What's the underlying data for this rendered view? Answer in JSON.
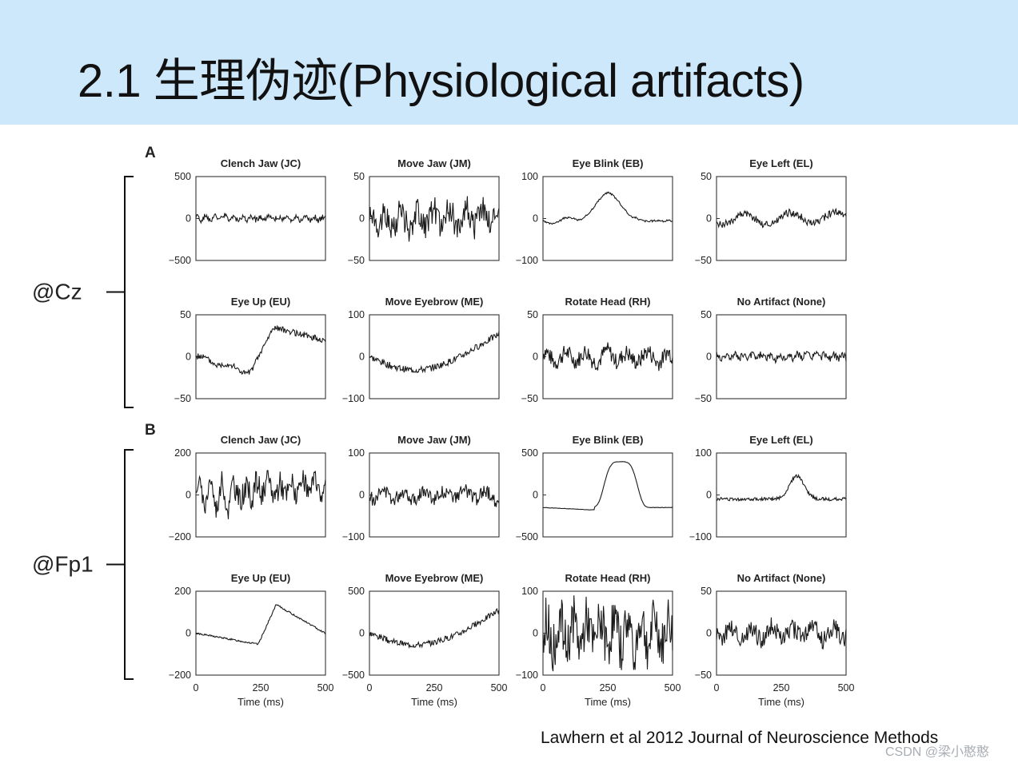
{
  "slide": {
    "title": "2.1 生理伪迹(Physiological artifacts)",
    "header_color": "#cde7fb",
    "citation": "Lawhern et al 2012 Journal of Neuroscience Methods",
    "watermark": "CSDN @梁小憨憨"
  },
  "sections": [
    {
      "label": "A",
      "channel": "@Cz"
    },
    {
      "label": "B",
      "channel": "@Fp1"
    }
  ],
  "chart_data": [
    {
      "type": "line",
      "section": "A",
      "title": "Clench Jaw (JC)",
      "ylim": [
        -500,
        500
      ],
      "yticks": [
        "500",
        "0",
        "−500"
      ],
      "x_range": [
        0,
        500
      ],
      "pattern": "hf",
      "amp": 0.1,
      "seed": 1
    },
    {
      "type": "line",
      "section": "A",
      "title": "Move Jaw (JM)",
      "ylim": [
        -50,
        50
      ],
      "yticks": [
        "50",
        "0",
        "−50"
      ],
      "x_range": [
        0,
        500
      ],
      "pattern": "noise",
      "amp": 0.42,
      "seed": 2
    },
    {
      "type": "line",
      "section": "A",
      "title": "Eye Blink (EB)",
      "ylim": [
        -100,
        100
      ],
      "yticks": [
        "100",
        "0",
        "−100"
      ],
      "x_range": [
        0,
        500
      ],
      "pattern": "blink",
      "amp": 0.65,
      "seed": 3
    },
    {
      "type": "line",
      "section": "A",
      "title": "Eye Left (EL)",
      "ylim": [
        -50,
        50
      ],
      "yticks": [
        "50",
        "0",
        "−50"
      ],
      "x_range": [
        0,
        500
      ],
      "pattern": "lowfreq",
      "amp": 0.22,
      "seed": 4
    },
    {
      "type": "line",
      "section": "A",
      "title": "Eye Up (EU)",
      "ylim": [
        -50,
        50
      ],
      "yticks": [
        "50",
        "0",
        "−50"
      ],
      "x_range": [
        0,
        500
      ],
      "pattern": "rise",
      "amp": 0.8,
      "seed": 5
    },
    {
      "type": "line",
      "section": "A",
      "title": "Move Eyebrow (ME)",
      "ylim": [
        -100,
        100
      ],
      "yticks": [
        "100",
        "0",
        "−100"
      ],
      "x_range": [
        0,
        500
      ],
      "pattern": "dip",
      "amp": 0.45,
      "seed": 6
    },
    {
      "type": "line",
      "section": "A",
      "title": "Rotate Head (RH)",
      "ylim": [
        -50,
        50
      ],
      "yticks": [
        "50",
        "0",
        "−50"
      ],
      "x_range": [
        0,
        500
      ],
      "pattern": "noise_mid",
      "amp": 0.3,
      "seed": 7
    },
    {
      "type": "line",
      "section": "A",
      "title": "No Artifact (None)",
      "ylim": [
        -50,
        50
      ],
      "yticks": [
        "50",
        "0",
        "−50"
      ],
      "x_range": [
        0,
        500
      ],
      "pattern": "hf",
      "amp": 0.12,
      "seed": 8
    },
    {
      "type": "line",
      "section": "B",
      "title": "Clench Jaw (JC)",
      "ylim": [
        -200,
        200
      ],
      "yticks": [
        "200",
        "0",
        "−200"
      ],
      "x_range": [
        0,
        500
      ],
      "pattern": "hfbig",
      "amp": 0.55,
      "seed": 9
    },
    {
      "type": "line",
      "section": "B",
      "title": "Move Jaw (JM)",
      "ylim": [
        -100,
        100
      ],
      "yticks": [
        "100",
        "0",
        "−100"
      ],
      "x_range": [
        0,
        500
      ],
      "pattern": "noise_mid",
      "amp": 0.25,
      "seed": 10
    },
    {
      "type": "line",
      "section": "B",
      "title": "Eye Blink (EB)",
      "ylim": [
        -500,
        500
      ],
      "yticks": [
        "500",
        "0",
        "−500"
      ],
      "x_range": [
        0,
        500
      ],
      "pattern": "blinkbig",
      "amp": 0.95,
      "seed": 11
    },
    {
      "type": "line",
      "section": "B",
      "title": "Eye Left (EL)",
      "ylim": [
        -100,
        100
      ],
      "yticks": [
        "100",
        "0",
        "−100"
      ],
      "x_range": [
        0,
        500
      ],
      "pattern": "bump",
      "amp": 0.55,
      "seed": 12
    },
    {
      "type": "line",
      "section": "B",
      "title": "Eye Up (EU)",
      "ylim": [
        -200,
        200
      ],
      "yticks": [
        "200",
        "0",
        "−200"
      ],
      "x_range": [
        0,
        500
      ],
      "pattern": "riseB",
      "amp": 0.9,
      "seed": 13,
      "xticks": [
        "0",
        "250",
        "500"
      ],
      "xlabel": "Time (ms)"
    },
    {
      "type": "line",
      "section": "B",
      "title": "Move Eyebrow (ME)",
      "ylim": [
        -500,
        500
      ],
      "yticks": [
        "500",
        "0",
        "−500"
      ],
      "x_range": [
        0,
        500
      ],
      "pattern": "dip",
      "amp": 0.4,
      "seed": 14,
      "xticks": [
        "0",
        "250",
        "500"
      ],
      "xlabel": "Time (ms)"
    },
    {
      "type": "line",
      "section": "B",
      "title": "Rotate Head (RH)",
      "ylim": [
        -100,
        100
      ],
      "yticks": [
        "100",
        "0",
        "−100"
      ],
      "x_range": [
        0,
        500
      ],
      "pattern": "noisebig",
      "amp": 0.65,
      "seed": 15,
      "xticks": [
        "0",
        "250",
        "500"
      ],
      "xlabel": "Time (ms)"
    },
    {
      "type": "line",
      "section": "B",
      "title": "No Artifact (None)",
      "ylim": [
        -50,
        50
      ],
      "yticks": [
        "50",
        "0",
        "−50"
      ],
      "x_range": [
        0,
        500
      ],
      "pattern": "noise_mid",
      "amp": 0.35,
      "seed": 16,
      "xticks": [
        "0",
        "250",
        "500"
      ],
      "xlabel": "Time (ms)"
    }
  ]
}
